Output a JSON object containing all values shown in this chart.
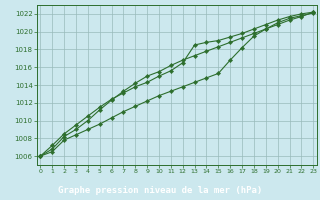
{
  "title": "Graphe pression niveau de la mer (hPa)",
  "bg_color": "#cce8ee",
  "plot_bg_color": "#cce8ee",
  "label_bg_color": "#2d6e2d",
  "label_text_color": "#ffffff",
  "grid_color": "#99bbbb",
  "line_color": "#2d6e2d",
  "marker_color": "#2d6e2d",
  "xlim": [
    -0.3,
    23.3
  ],
  "ylim": [
    1005.0,
    1023.0
  ],
  "xtick_labels": [
    "0",
    "1",
    "2",
    "3",
    "4",
    "5",
    "6",
    "7",
    "8",
    "9",
    "10",
    "11",
    "12",
    "13",
    "14",
    "15",
    "16",
    "17",
    "18",
    "19",
    "20",
    "21",
    "22",
    "23"
  ],
  "yticks": [
    1006,
    1008,
    1010,
    1012,
    1014,
    1016,
    1018,
    1020,
    1022
  ],
  "series": [
    [
      1006.0,
      1006.5,
      1007.8,
      1008.4,
      1009.0,
      1009.6,
      1010.3,
      1011.0,
      1011.6,
      1012.2,
      1012.8,
      1013.3,
      1013.8,
      1014.3,
      1014.8,
      1015.3,
      1016.8,
      1018.2,
      1019.5,
      1020.3,
      1021.0,
      1021.5,
      1021.8,
      1022.1
    ],
    [
      1006.0,
      1006.8,
      1008.2,
      1009.0,
      1010.0,
      1011.2,
      1012.3,
      1013.3,
      1014.2,
      1015.0,
      1015.5,
      1016.2,
      1016.8,
      1017.3,
      1017.8,
      1018.3,
      1018.8,
      1019.3,
      1019.8,
      1020.3,
      1020.8,
      1021.3,
      1021.7,
      1022.2
    ],
    [
      1006.0,
      1007.2,
      1008.5,
      1009.5,
      1010.5,
      1011.5,
      1012.4,
      1013.1,
      1013.8,
      1014.3,
      1015.0,
      1015.6,
      1016.5,
      1018.5,
      1018.8,
      1019.0,
      1019.4,
      1019.8,
      1020.3,
      1020.8,
      1021.3,
      1021.7,
      1022.0,
      1022.2
    ]
  ]
}
